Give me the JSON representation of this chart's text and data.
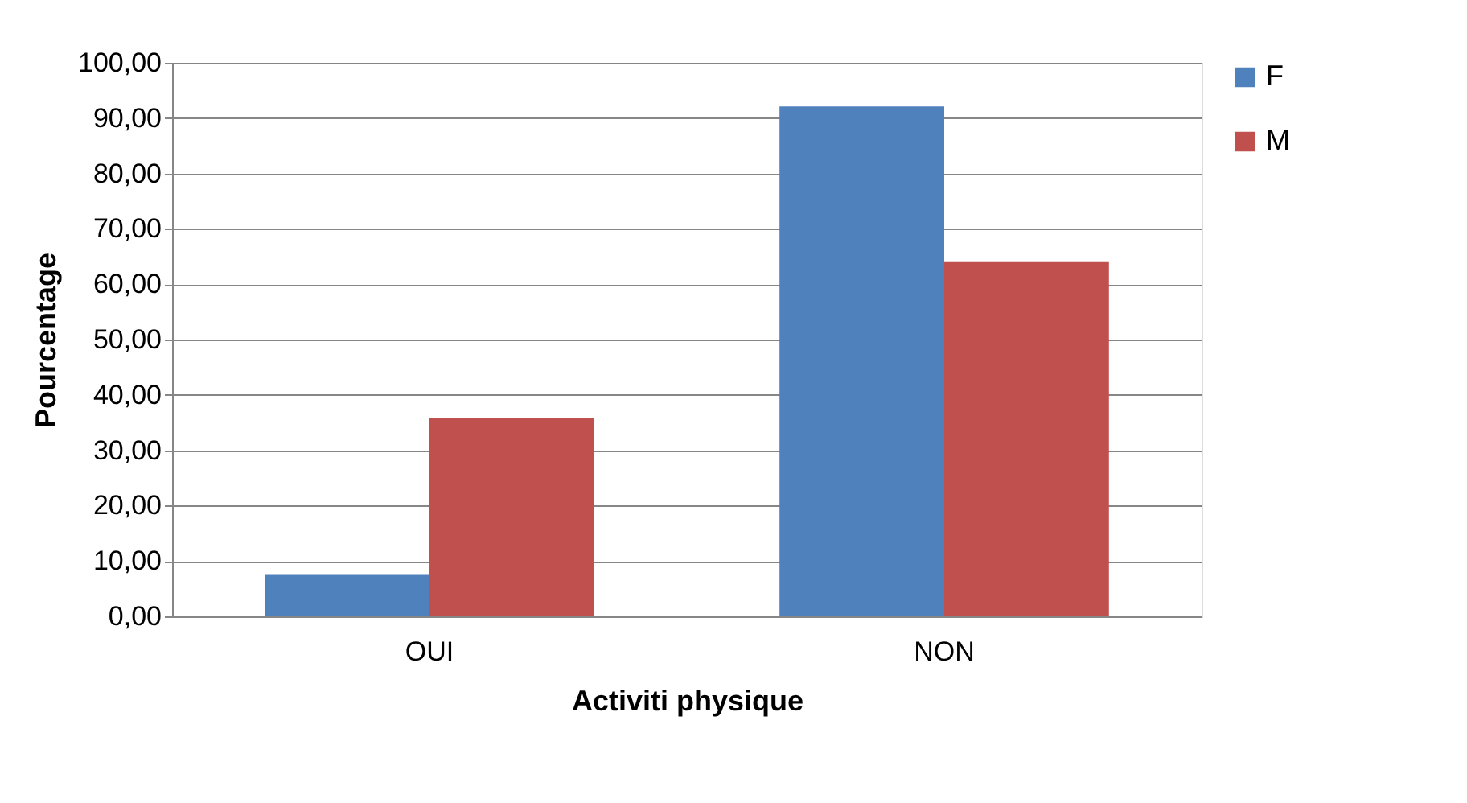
{
  "chart_data": {
    "type": "bar",
    "xlabel": "Activiti physique",
    "ylabel": "Pourcentage",
    "categories": [
      "OUI",
      "NON"
    ],
    "series": [
      {
        "name": "F",
        "color": "#4f81bd",
        "values": [
          7.5,
          92.1
        ]
      },
      {
        "name": "M",
        "color": "#c0504d",
        "values": [
          35.8,
          64.0
        ]
      }
    ],
    "ylim": [
      0,
      100
    ],
    "yticks": [
      {
        "value": 0,
        "label": "0,00"
      },
      {
        "value": 10,
        "label": "10,00"
      },
      {
        "value": 20,
        "label": "20,00"
      },
      {
        "value": 30,
        "label": "30,00"
      },
      {
        "value": 40,
        "label": "40,00"
      },
      {
        "value": 50,
        "label": "50,00"
      },
      {
        "value": 60,
        "label": "60,00"
      },
      {
        "value": 70,
        "label": "70,00"
      },
      {
        "value": 80,
        "label": "80,00"
      },
      {
        "value": 90,
        "label": "90,00"
      },
      {
        "value": 100,
        "label": "100,00"
      }
    ],
    "grid": "y",
    "legend": "right"
  }
}
